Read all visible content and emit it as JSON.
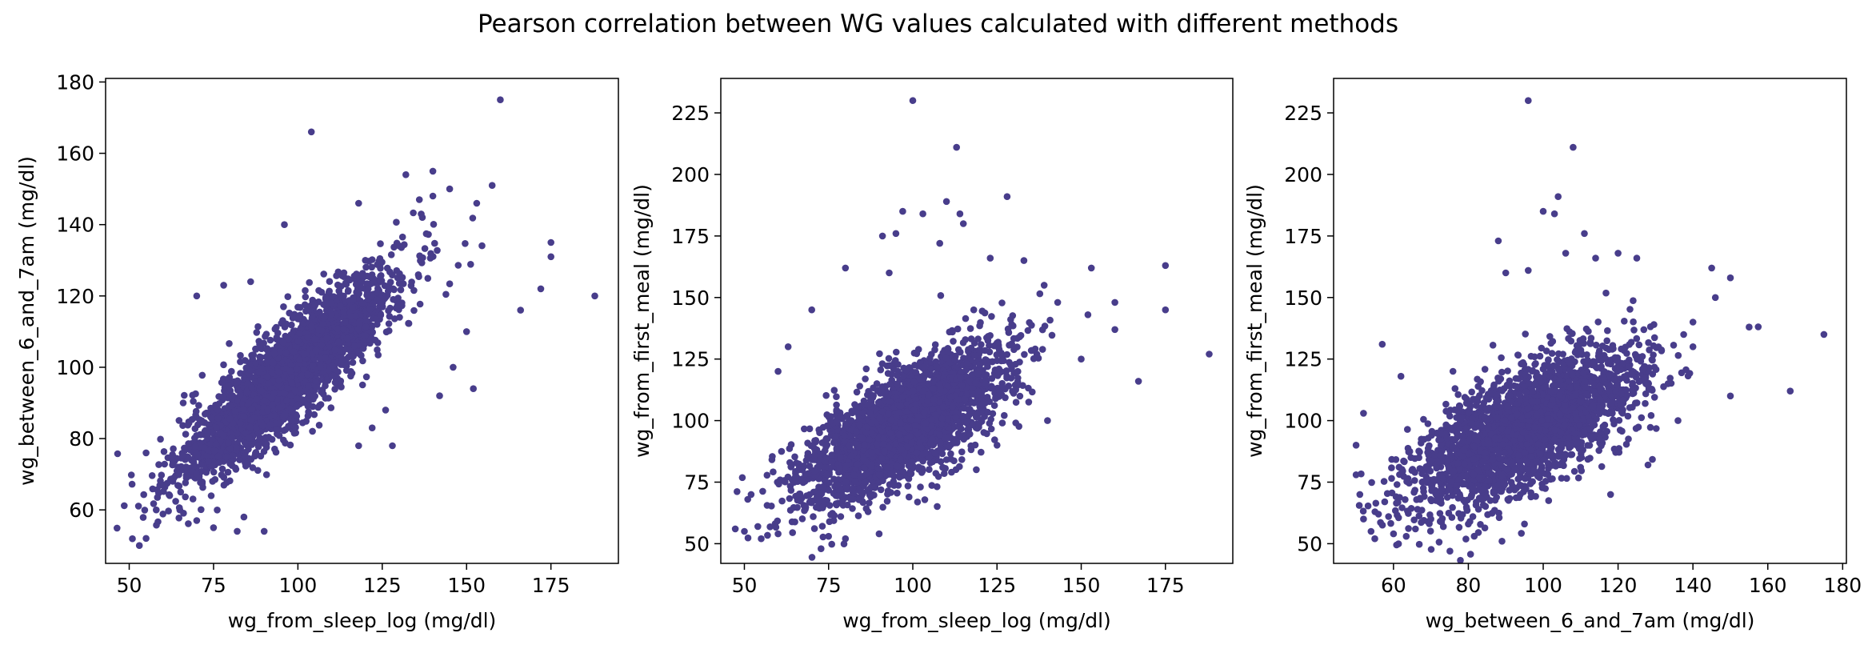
{
  "suptitle": "Pearson correlation between WG values calculated with different methods",
  "marker_color": "#483d8b",
  "chart_data": [
    {
      "type": "scatter",
      "title": "",
      "xlabel": "wg_from_sleep_log (mg/dl)",
      "ylabel": "wg_between_6_and_7am (mg/dl)",
      "xlim": [
        43,
        195
      ],
      "ylim": [
        45,
        181
      ],
      "xticks": [
        50,
        75,
        100,
        125,
        150,
        175
      ],
      "yticks": [
        60,
        80,
        100,
        120,
        140,
        160,
        180
      ],
      "points": [
        [
          160,
          175
        ],
        [
          104,
          166
        ],
        [
          140,
          155
        ],
        [
          188,
          120
        ],
        [
          175,
          135
        ],
        [
          175,
          131
        ],
        [
          172,
          122
        ],
        [
          166,
          116
        ],
        [
          152,
          94
        ],
        [
          146,
          100
        ],
        [
          132,
          154
        ],
        [
          118,
          146
        ],
        [
          128,
          78
        ],
        [
          70,
          120
        ],
        [
          78,
          123
        ],
        [
          53,
          50
        ],
        [
          55,
          52
        ],
        [
          58,
          60
        ],
        [
          62,
          64
        ],
        [
          65,
          60
        ],
        [
          70,
          57
        ],
        [
          75,
          55
        ],
        [
          82,
          54
        ],
        [
          90,
          54
        ],
        [
          84,
          58
        ],
        [
          66,
          90
        ],
        [
          86,
          124
        ],
        [
          96,
          140
        ],
        [
          118,
          78
        ],
        [
          122,
          83
        ],
        [
          126,
          88
        ],
        [
          142,
          92
        ],
        [
          150,
          110
        ],
        [
          153,
          146
        ],
        [
          145,
          150
        ],
        [
          140,
          148
        ],
        [
          136,
          147
        ],
        [
          55,
          76
        ],
        [
          120,
          130
        ],
        [
          125,
          118
        ]
      ],
      "trend": {
        "slope": 0.8,
        "intercept": 20,
        "x_mean": 97,
        "x_sd": 16,
        "noise_sd": 7
      }
    },
    {
      "type": "scatter",
      "title": "",
      "xlabel": "wg_from_sleep_log (mg/dl)",
      "ylabel": "wg_from_first_meal (mg/dl)",
      "xlim": [
        43,
        195
      ],
      "ylim": [
        42,
        239
      ],
      "xticks": [
        50,
        75,
        100,
        125,
        150,
        175
      ],
      "yticks": [
        50,
        75,
        100,
        125,
        150,
        175,
        200,
        225
      ],
      "points": [
        [
          100,
          230
        ],
        [
          113,
          211
        ],
        [
          97,
          185
        ],
        [
          103,
          184
        ],
        [
          110,
          189
        ],
        [
          114,
          184
        ],
        [
          128,
          191
        ],
        [
          188,
          127
        ],
        [
          175,
          163
        ],
        [
          175,
          145
        ],
        [
          167,
          116
        ],
        [
          160,
          148
        ],
        [
          160,
          137
        ],
        [
          153,
          162
        ],
        [
          152,
          143
        ],
        [
          150,
          125
        ],
        [
          143,
          148
        ],
        [
          139,
          155
        ],
        [
          133,
          165
        ],
        [
          123,
          166
        ],
        [
          115,
          180
        ],
        [
          108,
          172
        ],
        [
          95,
          176
        ],
        [
          91,
          175
        ],
        [
          93,
          160
        ],
        [
          80,
          162
        ],
        [
          70,
          145
        ],
        [
          63,
          130
        ],
        [
          60,
          120
        ],
        [
          52,
          70
        ],
        [
          51,
          68
        ],
        [
          54,
          57
        ],
        [
          55,
          52
        ],
        [
          60,
          54
        ],
        [
          75,
          53
        ],
        [
          80,
          52
        ],
        [
          90,
          54
        ],
        [
          50,
          55
        ],
        [
          125,
          90
        ],
        [
          140,
          100
        ]
      ],
      "trend": {
        "slope": 0.75,
        "intercept": 25,
        "x_mean": 97,
        "x_sd": 15,
        "noise_sd": 11
      }
    },
    {
      "type": "scatter",
      "title": "",
      "xlabel": "wg_between_6_and_7am (mg/dl)",
      "ylabel": "wg_from_first_meal (mg/dl)",
      "xlim": [
        44,
        181
      ],
      "ylim": [
        42,
        239
      ],
      "xticks": [
        60,
        80,
        100,
        120,
        140,
        160,
        180
      ],
      "yticks": [
        50,
        75,
        100,
        125,
        150,
        175,
        200,
        225
      ],
      "points": [
        [
          96,
          230
        ],
        [
          108,
          211
        ],
        [
          104,
          191
        ],
        [
          100,
          185
        ],
        [
          103,
          184
        ],
        [
          88,
          173
        ],
        [
          175,
          135
        ],
        [
          166,
          112
        ],
        [
          155,
          138
        ],
        [
          145,
          162
        ],
        [
          150,
          158
        ],
        [
          146,
          150
        ],
        [
          140,
          140
        ],
        [
          140,
          130
        ],
        [
          125,
          166
        ],
        [
          120,
          168
        ],
        [
          114,
          166
        ],
        [
          111,
          176
        ],
        [
          106,
          168
        ],
        [
          96,
          161
        ],
        [
          90,
          160
        ],
        [
          57,
          131
        ],
        [
          52,
          103
        ],
        [
          50,
          90
        ],
        [
          50,
          78
        ],
        [
          51,
          70
        ],
        [
          52,
          60
        ],
        [
          54,
          55
        ],
        [
          55,
          52
        ],
        [
          60,
          54
        ],
        [
          70,
          60
        ],
        [
          80,
          58
        ],
        [
          89,
          51
        ],
        [
          95,
          58
        ],
        [
          62,
          118
        ],
        [
          118,
          70
        ],
        [
          128,
          82
        ],
        [
          136,
          100
        ],
        [
          150,
          110
        ],
        [
          56,
          62
        ]
      ],
      "trend": {
        "slope": 0.75,
        "intercept": 25,
        "x_mean": 96,
        "x_sd": 15,
        "noise_sd": 12
      }
    }
  ]
}
